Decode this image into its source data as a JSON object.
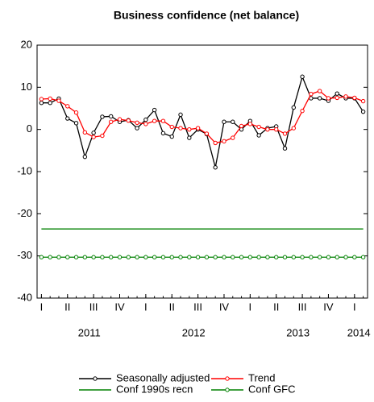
{
  "chart_data": {
    "type": "line",
    "title": "Business confidence (net balance)",
    "x": [
      0,
      1,
      2,
      3,
      4,
      5,
      6,
      7,
      8,
      9,
      10,
      11,
      12,
      13,
      14,
      15,
      16,
      17,
      18,
      19,
      20,
      21,
      22,
      23,
      24,
      25,
      26,
      27,
      28,
      29,
      30,
      31,
      32,
      33,
      34,
      35,
      36,
      37
    ],
    "xlim": [
      -0.5,
      37.5
    ],
    "xticks": [
      {
        "value": 0,
        "label": "I"
      },
      {
        "value": 3,
        "label": "II"
      },
      {
        "value": 6,
        "label": "III"
      },
      {
        "value": 9,
        "label": "IV"
      },
      {
        "value": 12,
        "label": "I"
      },
      {
        "value": 15,
        "label": "II"
      },
      {
        "value": 18,
        "label": "III"
      },
      {
        "value": 21,
        "label": "IV"
      },
      {
        "value": 24,
        "label": "I"
      },
      {
        "value": 27,
        "label": "II"
      },
      {
        "value": 30,
        "label": "III"
      },
      {
        "value": 33,
        "label": "IV"
      },
      {
        "value": 36,
        "label": "I"
      }
    ],
    "year_labels": [
      {
        "value": 5.5,
        "label": "2011"
      },
      {
        "value": 17.5,
        "label": "2012"
      },
      {
        "value": 29.5,
        "label": "2013"
      },
      {
        "value": 36.5,
        "label": "2014"
      }
    ],
    "ylim": [
      -40,
      20
    ],
    "yticks": [
      -40,
      -30,
      -20,
      -10,
      0,
      10,
      20
    ],
    "grid": false,
    "series": [
      {
        "name": "Seasonally adjusted",
        "color": "#000000",
        "markers": true,
        "values": [
          6.3,
          6.3,
          7.3,
          2.6,
          1.5,
          -6.5,
          -0.8,
          3,
          3.1,
          1.8,
          2.2,
          0.3,
          2.3,
          4.6,
          -0.9,
          -1.7,
          3.5,
          -2,
          0,
          -1.1,
          -9,
          1.8,
          1.8,
          0,
          2,
          -1.4,
          0.3,
          0.7,
          -4.5,
          5.2,
          12.5,
          7.4,
          7.4,
          6.8,
          8.5,
          7.4,
          7.4,
          4.2
        ]
      },
      {
        "name": "Trend",
        "color": "#ff0000",
        "markers": true,
        "values": [
          7.2,
          7.3,
          6.8,
          5.5,
          4,
          -0.7,
          -1.8,
          -1.5,
          1.8,
          2.4,
          2.1,
          1.6,
          1.3,
          2,
          2,
          0.6,
          0.3,
          0,
          0.3,
          -1,
          -3.2,
          -2.8,
          -2,
          0.8,
          1.3,
          0.6,
          0,
          0,
          -1,
          0.3,
          4.4,
          8.4,
          9.1,
          7.4,
          7.5,
          7.8,
          7.5,
          6.7
        ]
      },
      {
        "name": "Conf 1990s recn",
        "color": "#008000",
        "markers": false,
        "values": [
          -23.6,
          -23.6,
          -23.6,
          -23.6,
          -23.6,
          -23.6,
          -23.6,
          -23.6,
          -23.6,
          -23.6,
          -23.6,
          -23.6,
          -23.6,
          -23.6,
          -23.6,
          -23.6,
          -23.6,
          -23.6,
          -23.6,
          -23.6,
          -23.6,
          -23.6,
          -23.6,
          -23.6,
          -23.6,
          -23.6,
          -23.6,
          -23.6,
          -23.6,
          -23.6,
          -23.6,
          -23.6,
          -23.6,
          -23.6,
          -23.6,
          -23.6,
          -23.6,
          -23.6
        ]
      },
      {
        "name": "Conf GFC",
        "color": "#008000",
        "markers": true,
        "values": [
          -30.3,
          -30.3,
          -30.3,
          -30.3,
          -30.3,
          -30.3,
          -30.3,
          -30.3,
          -30.3,
          -30.3,
          -30.3,
          -30.3,
          -30.3,
          -30.3,
          -30.3,
          -30.3,
          -30.3,
          -30.3,
          -30.3,
          -30.3,
          -30.3,
          -30.3,
          -30.3,
          -30.3,
          -30.3,
          -30.3,
          -30.3,
          -30.3,
          -30.3,
          -30.3,
          -30.3,
          -30.3,
          -30.3,
          -30.3,
          -30.3,
          -30.3,
          -30.3,
          -30.3
        ]
      }
    ]
  }
}
